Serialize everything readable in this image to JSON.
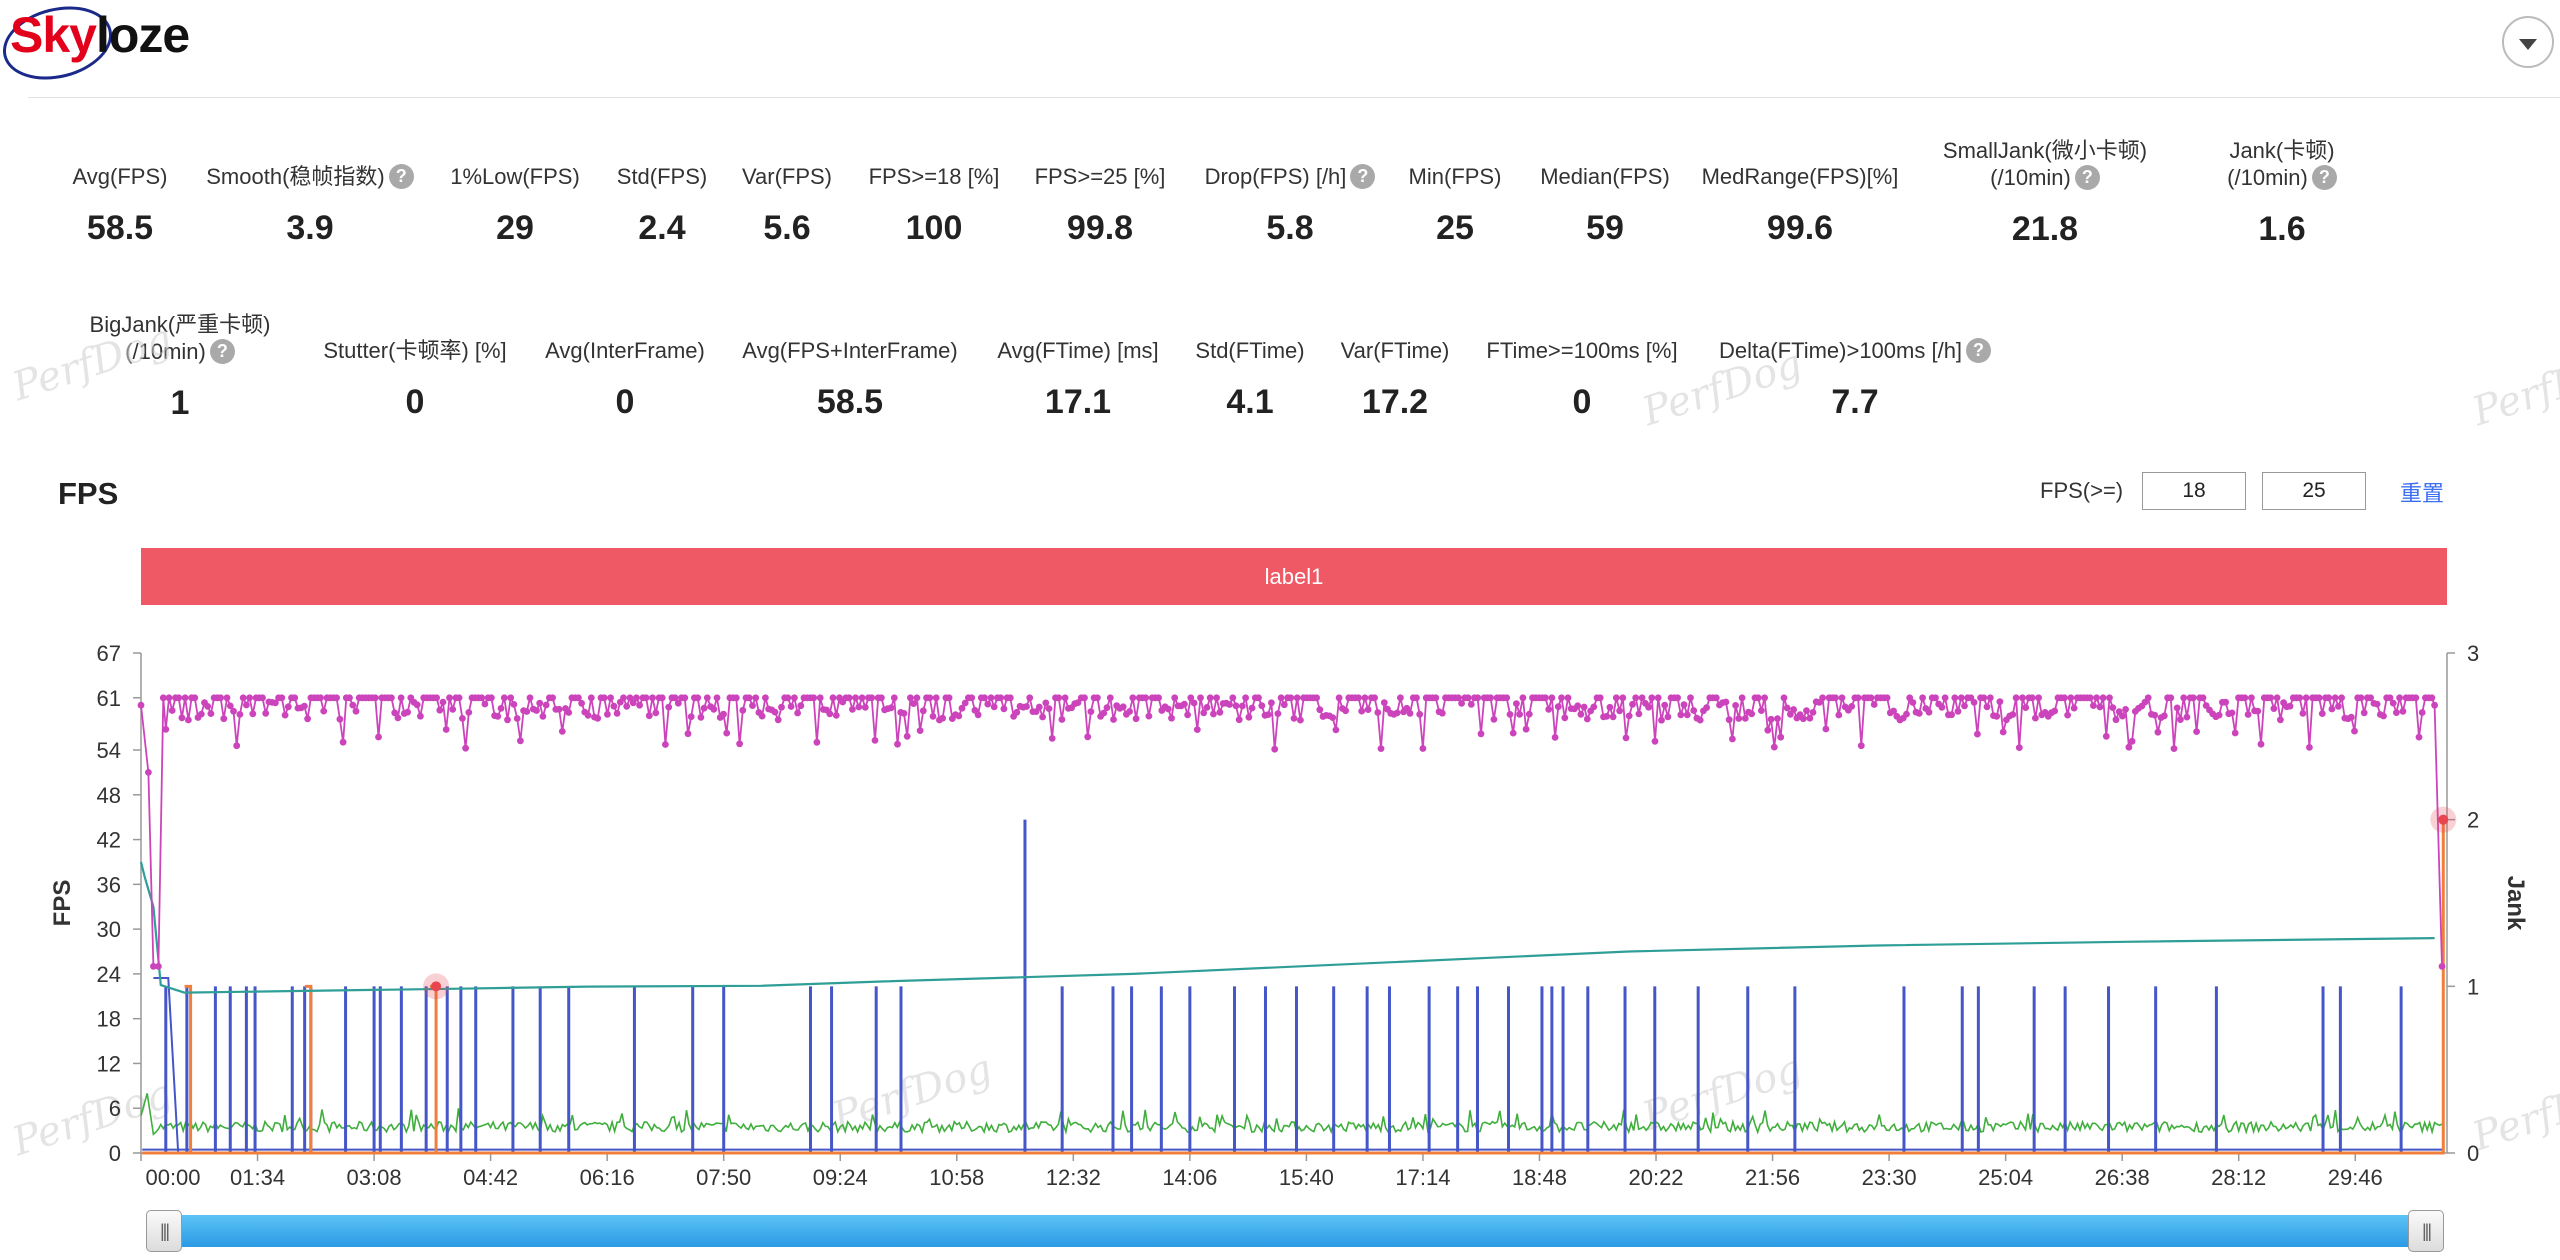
{
  "logo": {
    "part1": "Sky",
    "part2": "loze"
  },
  "stats_row1": [
    {
      "label": "Avg(FPS)",
      "value": "58.5",
      "help": false
    },
    {
      "label": "Smooth(稳帧指数)",
      "value": "3.9",
      "help": true
    },
    {
      "label": "1%Low(FPS)",
      "value": "29",
      "help": false
    },
    {
      "label": "Std(FPS)",
      "value": "2.4",
      "help": false
    },
    {
      "label": "Var(FPS)",
      "value": "5.6",
      "help": false
    },
    {
      "label": "FPS>=18 [%]",
      "value": "100",
      "help": false
    },
    {
      "label": "FPS>=25 [%]",
      "value": "99.8",
      "help": false
    },
    {
      "label": "Drop(FPS) [/h]",
      "value": "5.8",
      "help": true
    },
    {
      "label": "Min(FPS)",
      "value": "25",
      "help": false
    },
    {
      "label": "Median(FPS)",
      "value": "59",
      "help": false
    },
    {
      "label": "MedRange(FPS)[%]",
      "value": "99.6",
      "help": false
    },
    {
      "label": "SmallJank(微小卡顿)",
      "label2": "(/10min)",
      "value": "21.8",
      "help": true
    },
    {
      "label": "Jank(卡顿)",
      "label2": "(/10min)",
      "value": "1.6",
      "help": true
    }
  ],
  "stats_row2": [
    {
      "label": "BigJank(严重卡顿)",
      "label2": "(/10min)",
      "value": "1",
      "help": true
    },
    {
      "label": "Stutter(卡顿率) [%]",
      "value": "0",
      "help": false
    },
    {
      "label": "Avg(InterFrame)",
      "value": "0",
      "help": false
    },
    {
      "label": "Avg(FPS+InterFrame)",
      "value": "58.5",
      "help": false
    },
    {
      "label": "Avg(FTime) [ms]",
      "value": "17.1",
      "help": false
    },
    {
      "label": "Std(FTime)",
      "value": "4.1",
      "help": false
    },
    {
      "label": "Var(FTime)",
      "value": "17.2",
      "help": false
    },
    {
      "label": "FTime>=100ms [%]",
      "value": "0",
      "help": false
    },
    {
      "label": "Delta(FTime)>100ms [/h]",
      "value": "7.7",
      "help": true
    }
  ],
  "watermark_text": "PerfDog",
  "fps_section": {
    "title": "FPS",
    "threshold_label": "FPS(>=)",
    "threshold1": "18",
    "threshold2": "25",
    "reset_label": "重置",
    "label_bar": "label1"
  },
  "chart_data": {
    "type": "line",
    "x_ticks": [
      "00:00",
      "01:34",
      "03:08",
      "04:42",
      "06:16",
      "07:50",
      "09:24",
      "10:58",
      "12:32",
      "14:06",
      "15:40",
      "17:14",
      "18:48",
      "20:22",
      "21:56",
      "23:30",
      "25:04",
      "26:38",
      "28:12",
      "29:46"
    ],
    "x_range_seconds": [
      0,
      1860
    ],
    "ylabel_left": "FPS",
    "ylabel_right": "Jank",
    "y_left_ticks": [
      0,
      6,
      12,
      18,
      24,
      30,
      36,
      42,
      48,
      54,
      61,
      67
    ],
    "y_left_range": [
      0,
      67
    ],
    "y_right_ticks": [
      0,
      1,
      2,
      3
    ],
    "y_right_range": [
      0,
      3
    ],
    "grid": false,
    "colors": {
      "fps": "#cc44bb",
      "ftime": "#2e9e97",
      "small_jank": "#4456c8",
      "jank_orange": "#f07f3c",
      "interframe_green": "#3fae3c",
      "highlight": "#e8454f"
    },
    "series": [
      {
        "key": "fps",
        "baseline": 59,
        "jitter_range": [
          54,
          61
        ],
        "start_values": [
          [
            0,
            60
          ],
          [
            6,
            51
          ],
          [
            10,
            25
          ],
          [
            14,
            25
          ],
          [
            18,
            61
          ]
        ],
        "end_values": [
          [
            1850,
            60
          ],
          [
            1856,
            25
          ]
        ]
      },
      {
        "key": "ftime",
        "points": [
          [
            0,
            39
          ],
          [
            3,
            37
          ],
          [
            10,
            33
          ],
          [
            16,
            22.5
          ],
          [
            35,
            21.5
          ],
          [
            80,
            21.6
          ],
          [
            250,
            22.0
          ],
          [
            360,
            22.3
          ],
          [
            500,
            22.4
          ],
          [
            600,
            23.0
          ],
          [
            800,
            24.0
          ],
          [
            1000,
            25.5
          ],
          [
            1200,
            27.0
          ],
          [
            1400,
            27.8
          ],
          [
            1600,
            28.3
          ],
          [
            1850,
            28.8
          ]
        ]
      },
      {
        "key": "interframe_green",
        "baseline": 3.5,
        "jitter_range": [
          2.5,
          6
        ],
        "start_values": [
          [
            0,
            5
          ],
          [
            5,
            8
          ],
          [
            10,
            2.5
          ]
        ]
      },
      {
        "key": "small_jank",
        "axis": "right",
        "spikes": [
          20,
          37,
          60,
          72,
          85,
          92,
          122,
          132,
          137,
          165,
          188,
          193,
          210,
          230,
          247,
          258,
          270,
          300,
          322,
          345,
          398,
          445,
          470,
          540,
          557,
          593,
          613,
          713,
          743,
          784,
          799,
          823,
          846,
          882,
          907,
          932,
          962,
          989,
          1007,
          1039,
          1062,
          1078,
          1103,
          1130,
          1138,
          1147,
          1167,
          1197,
          1221,
          1256,
          1296,
          1334,
          1422,
          1469,
          1482,
          1527,
          1552,
          1587,
          1625,
          1674,
          1760,
          1774,
          1823
        ],
        "tall_spike": {
          "t": 713,
          "value": 2.0
        }
      },
      {
        "key": "jank_orange",
        "axis": "right",
        "spikes": [
          40,
          137,
          238,
          1860
        ]
      }
    ],
    "highlighted_points": [
      {
        "t": 238,
        "axis": "right",
        "value": 1.0
      },
      {
        "t": 1860,
        "axis": "right",
        "value": 2.0
      }
    ]
  },
  "slider": {
    "start_grip": "|||",
    "end_grip": "|||"
  }
}
